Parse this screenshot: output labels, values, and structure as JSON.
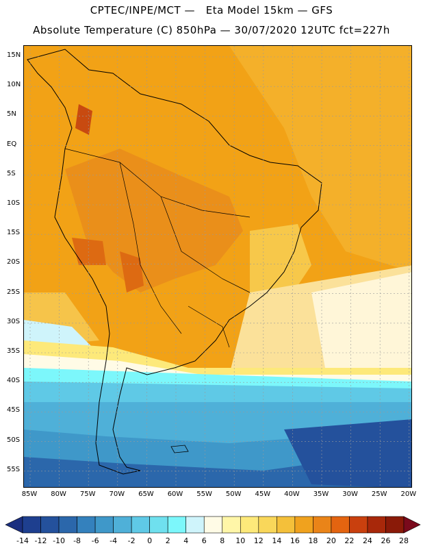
{
  "header": {
    "line1": "CPTEC/INPE/MCT —   Eta Model 15km — GFS",
    "line2": "Absolute Temperature (C) 850hPa — 30/07/2020 12UTC fct=227h"
  },
  "map": {
    "lat_labels": [
      "15N",
      "10N",
      "5N",
      "EQ",
      "5S",
      "10S",
      "15S",
      "20S",
      "25S",
      "30S",
      "35S",
      "40S",
      "45S",
      "50S",
      "55S"
    ],
    "lon_labels": [
      "85W",
      "80W",
      "75W",
      "70W",
      "65W",
      "60W",
      "55W",
      "50W",
      "45W",
      "40W",
      "35W",
      "30W",
      "25W",
      "20W"
    ],
    "lat_range": [
      15,
      -55
    ],
    "lon_range": [
      -85,
      -20
    ]
  },
  "colorbar": {
    "labels": [
      "-14",
      "-12",
      "-10",
      "-8",
      "-6",
      "-4",
      "-2",
      "0",
      "2",
      "4",
      "6",
      "8",
      "10",
      "12",
      "14",
      "16",
      "18",
      "20",
      "22",
      "24",
      "26",
      "28"
    ],
    "colors": {
      "under": "#1b2f80",
      "bins": [
        "#1e3f8f",
        "#24519c",
        "#2b67ab",
        "#3481bd",
        "#3f98c9",
        "#4fb0d8",
        "#5fc9e6",
        "#6fe0ee",
        "#7cf7fb",
        "#cff4fb",
        "#fffbe6",
        "#fff6a8",
        "#fde97a",
        "#f9d75a",
        "#f4c03a",
        "#f0a21e",
        "#ea8418",
        "#e46410",
        "#c9400e",
        "#a8280a",
        "#8a1a08"
      ],
      "over": "#7a0a1c"
    }
  }
}
